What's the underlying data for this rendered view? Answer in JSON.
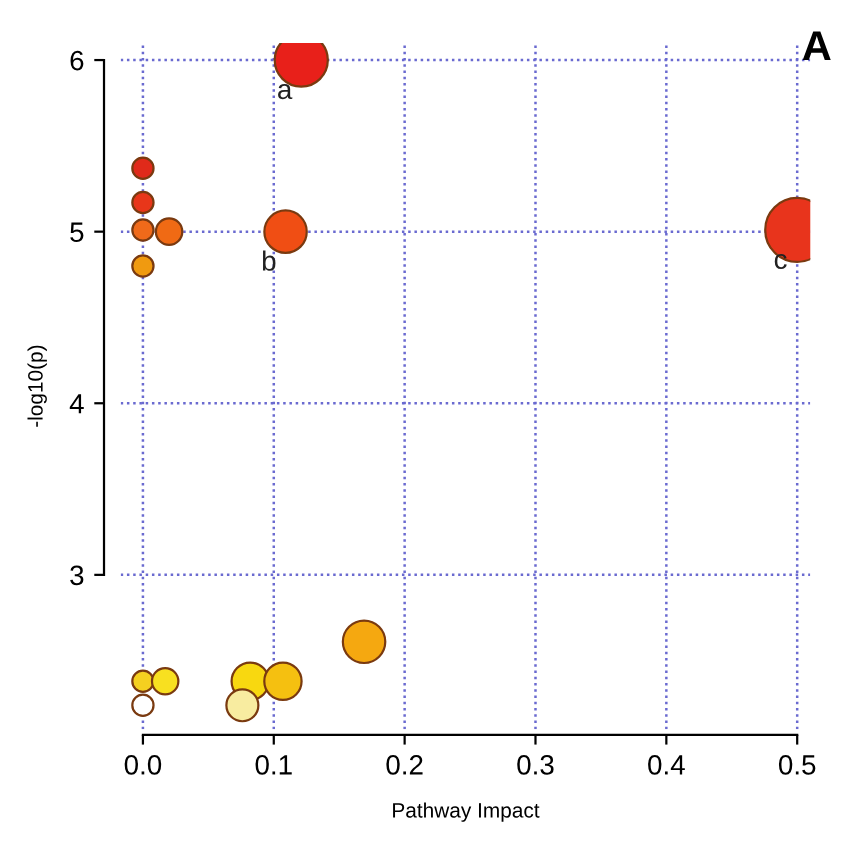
{
  "chart_data": {
    "type": "bubble",
    "xlabel": "Pathway Impact",
    "ylabel": "-log10(p)",
    "x": [
      0.5,
      0.121,
      0.109,
      0.0,
      0.0,
      0.0,
      0.02,
      0.0,
      0.169,
      0.0,
      0.017,
      0.082,
      0.107,
      0.076,
      0.0
    ],
    "values": [
      5.01,
      6.0,
      5.0,
      5.37,
      5.17,
      5.01,
      5.0,
      4.8,
      2.61,
      2.38,
      2.38,
      2.38,
      2.38,
      2.24,
      2.24
    ],
    "sizes": [
      1,
      0.69,
      0.44,
      0.11,
      0.11,
      0.11,
      0.17,
      0.11,
      0.44,
      0.11,
      0.17,
      0.34,
      0.34,
      0.25,
      0.11
    ],
    "colors": [
      "#e8341c",
      "#e8201a",
      "#f04e14",
      "#e02a1a",
      "#e8361a",
      "#f06a1a",
      "#f06a14",
      "#f09a10",
      "#f5a810",
      "#f5d020",
      "#f8e020",
      "#f8d810",
      "#f5c010",
      "#f8eca0",
      "#ffffff"
    ],
    "xlim": [
      -0.017,
      0.51
    ],
    "ylim": [
      2.1,
      6.1
    ],
    "xticks": [
      {
        "value": 0,
        "label": "0.0"
      },
      0.1,
      0.2,
      0.3,
      0.4,
      0.5
    ],
    "yticks": [
      3,
      4,
      5,
      6
    ],
    "grid": true,
    "annotations": [
      {
        "text": "a",
        "x": 0.121,
        "y": 6.0
      },
      {
        "text": "b",
        "x": 0.109,
        "y": 5.0
      },
      {
        "text": "c",
        "x": 0.5,
        "y": 5.01
      },
      "A"
    ]
  }
}
